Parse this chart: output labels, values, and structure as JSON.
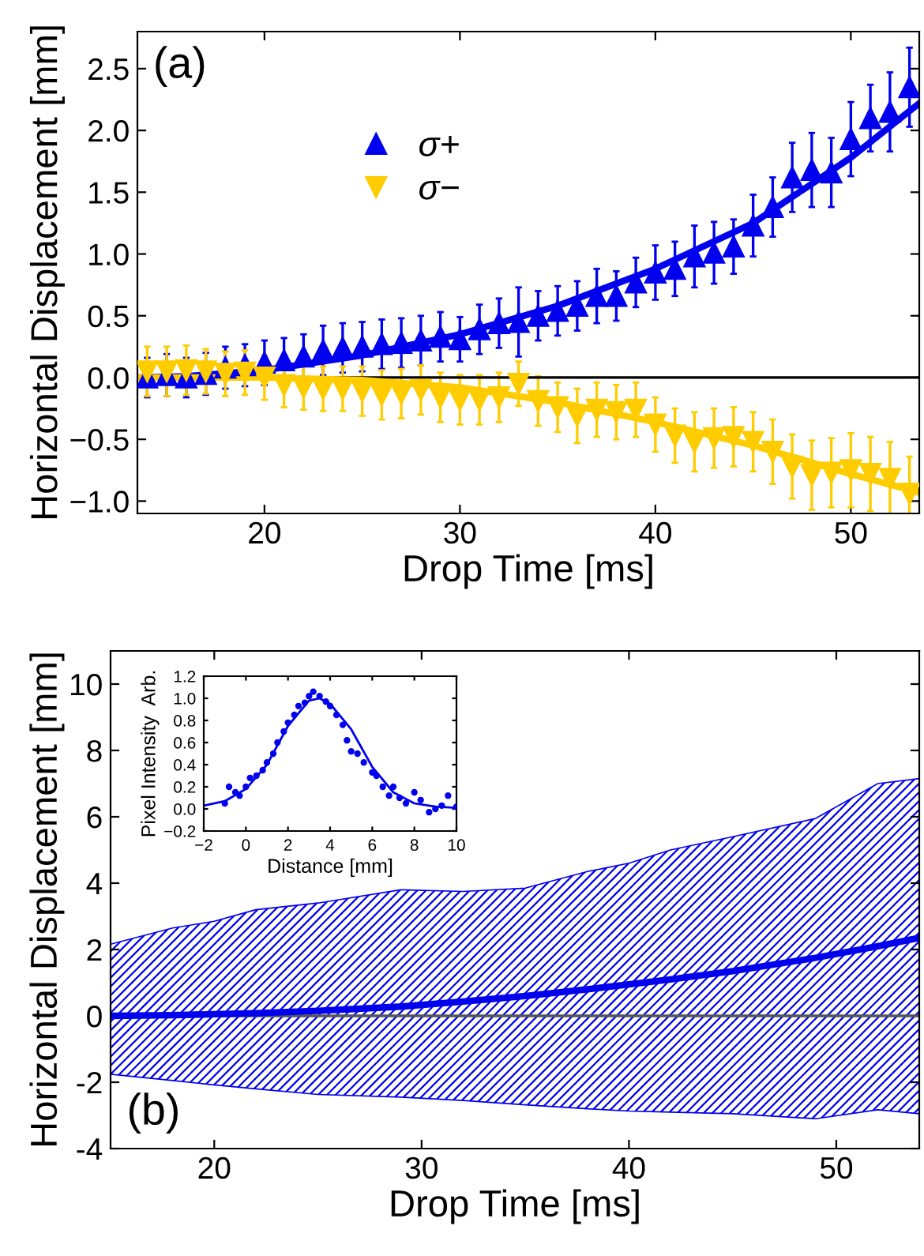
{
  "chart_data": [
    {
      "type": "scatter",
      "xlabel": "Drop Time [ms]",
      "ylabel": "Horizontal Displacement [mm]",
      "annotations": [
        "(a)"
      ],
      "xlim": [
        13.5,
        53.5
      ],
      "xticks": [
        20,
        30,
        40,
        50
      ],
      "ylim": [
        -1.1,
        2.8
      ],
      "yticks": [
        {
          "value": -1.0,
          "label": "−1.0"
        },
        {
          "value": -0.5,
          "label": "−0.5"
        },
        {
          "value": 0,
          "label": "0.0"
        },
        {
          "value": 0.5,
          "label": "0.5"
        },
        {
          "value": 1.0,
          "label": "1.0"
        },
        {
          "value": 1.5,
          "label": "1.5"
        },
        {
          "value": 2.0,
          "label": "2.0"
        },
        {
          "value": 2.5,
          "label": "2.5"
        }
      ],
      "legend": "top left",
      "grid": false,
      "ref_lines": [
        {
          "axis": "y",
          "value": 0,
          "color": "#000000"
        }
      ],
      "x": [
        14,
        15,
        16,
        17,
        18,
        19,
        20,
        21,
        22,
        23,
        24,
        25,
        26,
        27,
        28,
        29,
        30,
        31,
        32,
        33,
        34,
        35,
        36,
        37,
        38,
        39,
        40,
        41,
        42,
        43,
        44,
        45,
        46,
        47,
        48,
        49,
        50,
        51,
        52,
        53
      ],
      "series": [
        {
          "name": "σ+",
          "color": "#0000ee",
          "marker": "triangle",
          "values": [
            0.0,
            0.02,
            0.0,
            0.03,
            0.08,
            0.1,
            0.12,
            0.14,
            0.17,
            0.22,
            0.24,
            0.25,
            0.27,
            0.28,
            0.3,
            0.33,
            0.31,
            0.39,
            0.44,
            0.45,
            0.5,
            0.54,
            0.58,
            0.66,
            0.66,
            0.77,
            0.85,
            0.88,
            0.98,
            1.01,
            1.06,
            1.23,
            1.38,
            1.62,
            1.68,
            1.66,
            1.93,
            2.1,
            2.15,
            2.35
          ],
          "errors": [
            0.16,
            0.17,
            0.16,
            0.17,
            0.17,
            0.17,
            0.18,
            0.18,
            0.18,
            0.2,
            0.2,
            0.2,
            0.2,
            0.2,
            0.2,
            0.2,
            0.18,
            0.2,
            0.2,
            0.28,
            0.2,
            0.2,
            0.2,
            0.22,
            0.2,
            0.2,
            0.22,
            0.22,
            0.25,
            0.25,
            0.22,
            0.25,
            0.24,
            0.28,
            0.3,
            0.28,
            0.3,
            0.27,
            0.32,
            0.32
          ]
        },
        {
          "name": "σ−",
          "color": "#ffcc00",
          "marker": "triangle-down",
          "values": [
            0.05,
            0.05,
            0.06,
            0.05,
            0.03,
            0.04,
            0.0,
            -0.06,
            -0.08,
            -0.09,
            -0.09,
            -0.11,
            -0.14,
            -0.13,
            -0.1,
            -0.16,
            -0.18,
            -0.18,
            -0.16,
            -0.05,
            -0.19,
            -0.24,
            -0.31,
            -0.26,
            -0.28,
            -0.26,
            -0.38,
            -0.47,
            -0.52,
            -0.49,
            -0.48,
            -0.52,
            -0.6,
            -0.72,
            -0.79,
            -0.77,
            -0.75,
            -0.78,
            -0.82,
            -0.94
          ],
          "errors": [
            0.2,
            0.2,
            0.2,
            0.18,
            0.18,
            0.18,
            0.18,
            0.18,
            0.18,
            0.18,
            0.18,
            0.2,
            0.2,
            0.2,
            0.2,
            0.2,
            0.2,
            0.2,
            0.2,
            0.18,
            0.2,
            0.2,
            0.22,
            0.22,
            0.22,
            0.22,
            0.22,
            0.22,
            0.24,
            0.24,
            0.24,
            0.24,
            0.26,
            0.26,
            0.28,
            0.28,
            0.3,
            0.3,
            0.3,
            0.3
          ]
        },
        {
          "type": "line",
          "color": "#0000ee",
          "x": [
            13.5,
            16,
            20,
            25,
            30,
            35,
            40,
            45,
            50,
            53.5
          ],
          "values": [
            0.0,
            0.01,
            0.06,
            0.18,
            0.35,
            0.58,
            0.88,
            1.25,
            1.78,
            2.22
          ]
        },
        {
          "type": "line",
          "color": "#ffcc00",
          "x": [
            13.5,
            20,
            25,
            30,
            35,
            40,
            45,
            50,
            53.5
          ],
          "values": [
            0.0,
            0.0,
            -0.02,
            -0.08,
            -0.2,
            -0.36,
            -0.55,
            -0.78,
            -0.93
          ]
        }
      ]
    },
    {
      "type": "line",
      "xlabel": "Drop Time [ms]",
      "ylabel": "Horizontal Displacement [mm]",
      "annotations": [
        "(b)"
      ],
      "xlim": [
        15,
        54
      ],
      "xticks": [
        20,
        30,
        40,
        50
      ],
      "ylim": [
        -4,
        11
      ],
      "yticks": [
        -4,
        -2,
        0,
        2,
        4,
        6,
        8,
        10
      ],
      "grid": false,
      "ref_lines": [
        {
          "axis": "y",
          "value": 0,
          "color": "#555555"
        }
      ],
      "x": [
        15,
        18,
        20,
        22,
        25,
        29,
        32,
        35,
        38,
        40,
        42,
        45,
        49,
        52,
        54
      ],
      "series": [
        {
          "color": "#0000ee",
          "values": [
            0,
            0.02,
            0.05,
            0.08,
            0.15,
            0.28,
            0.43,
            0.6,
            0.8,
            0.95,
            1.1,
            1.35,
            1.75,
            2.1,
            2.35
          ],
          "upper": [
            2.16,
            2.65,
            2.85,
            3.2,
            3.4,
            3.8,
            3.75,
            3.85,
            4.35,
            4.6,
            5.0,
            5.4,
            5.95,
            7.0,
            7.15
          ],
          "lower": [
            -1.76,
            -1.95,
            -2.08,
            -2.2,
            -2.37,
            -2.45,
            -2.55,
            -2.68,
            -2.8,
            -2.87,
            -2.9,
            -2.95,
            -3.1,
            -2.83,
            -2.95
          ]
        }
      ]
    },
    {
      "type": "scatter",
      "xlabel": "Distance [mm]",
      "ylabel": "Pixel Intensity  Arb.",
      "xlim": [
        -2,
        10
      ],
      "xticks": [
        {
          "value": -2,
          "label": "−2"
        },
        0,
        2,
        4,
        6,
        8,
        10
      ],
      "ylim": [
        -0.2,
        1.2
      ],
      "yticks": [
        {
          "value": -0.2,
          "label": "−0.2"
        },
        {
          "value": 0,
          "label": "0.0"
        },
        0.2,
        0.4,
        0.6,
        0.8,
        {
          "value": 1.0,
          "label": "1.0"
        },
        1.2
      ],
      "grid": false,
      "series": [
        {
          "color": "#0000ee",
          "marker": "circle",
          "x": [
            -1,
            -0.8,
            -0.5,
            -0.3,
            0,
            0.2,
            0.5,
            0.8,
            1,
            1.3,
            1.5,
            1.8,
            2,
            2.3,
            2.5,
            2.8,
            3,
            3.2,
            3.5,
            3.8,
            4,
            4.3,
            4.6,
            4.8,
            5,
            5.3,
            5.6,
            6,
            6.2,
            6.5,
            6.8,
            7,
            7.3,
            7.6,
            8,
            8.3,
            8.7,
            9,
            9.3,
            9.6,
            10
          ],
          "values": [
            0.05,
            0.2,
            0.15,
            0.12,
            0.2,
            0.28,
            0.3,
            0.35,
            0.42,
            0.5,
            0.6,
            0.7,
            0.78,
            0.85,
            0.93,
            0.96,
            1.02,
            1.06,
            1.02,
            0.97,
            0.93,
            0.85,
            0.76,
            0.62,
            0.52,
            0.5,
            0.42,
            0.33,
            0.3,
            0.2,
            0.12,
            0.2,
            0.1,
            0.05,
            0.15,
            0.08,
            -0.03,
            0.0,
            0.03,
            0.12,
            0.02
          ]
        },
        {
          "type": "line",
          "color": "#0000ee",
          "x": [
            -2,
            -1,
            0,
            1,
            2,
            3,
            3.5,
            4,
            5,
            6,
            7,
            8,
            9,
            10
          ],
          "values": [
            0.03,
            0.07,
            0.18,
            0.4,
            0.75,
            0.98,
            1.0,
            0.95,
            0.72,
            0.38,
            0.15,
            0.05,
            0.02,
            0.01
          ]
        }
      ]
    }
  ]
}
